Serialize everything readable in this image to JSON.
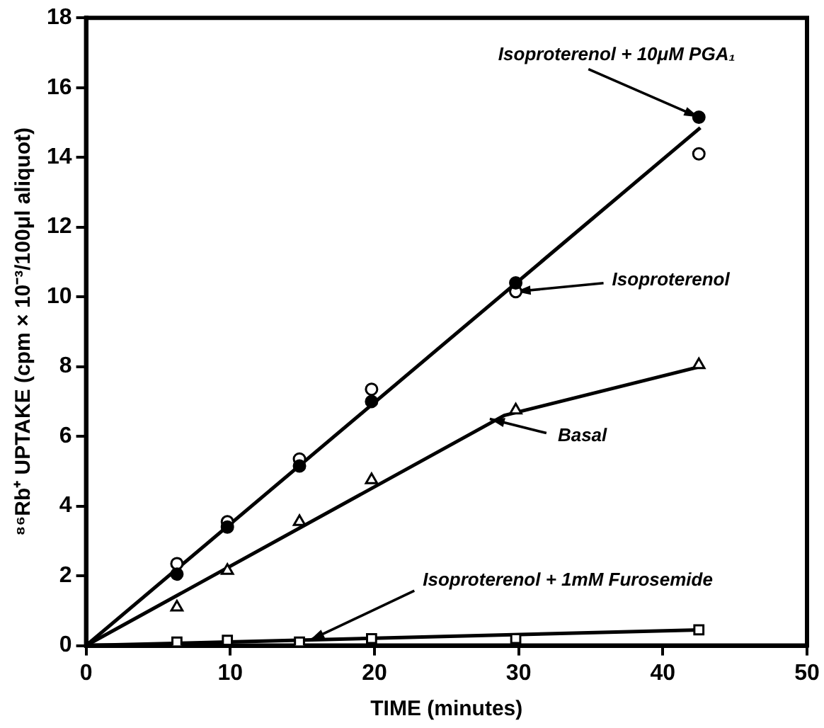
{
  "chart_data": {
    "type": "scatter",
    "xlabel": "TIME (minutes)",
    "ylabel": "⁸⁶Rb⁺ UPTAKE (cpm × 10⁻³/100μl aliquot)",
    "xlim": [
      0,
      50
    ],
    "xticks": [
      0,
      10,
      20,
      30,
      40,
      50
    ],
    "ylim": [
      0,
      18
    ],
    "yticks": [
      0,
      2,
      4,
      6,
      8,
      10,
      12,
      14,
      16,
      18
    ],
    "grid": false,
    "legend": false,
    "series": [
      {
        "marker": "circle",
        "color": "#ffffff",
        "x": [
          6.3,
          9.8,
          14.8,
          19.8,
          29.8,
          42.5
        ],
        "values": [
          2.35,
          3.55,
          5.35,
          7.35,
          10.15,
          14.1
        ]
      },
      {
        "marker": "circle",
        "color": "#000000",
        "x": [
          6.3,
          9.8,
          14.8,
          19.8,
          29.8,
          42.5
        ],
        "values": [
          2.05,
          3.4,
          5.15,
          7.0,
          10.4,
          15.15
        ]
      },
      {
        "marker": "triangle",
        "color": "#ffffff",
        "x": [
          6.3,
          9.8,
          14.8,
          19.8,
          29.8,
          42.5
        ],
        "values": [
          1.1,
          2.15,
          3.55,
          4.75,
          6.75,
          8.05
        ]
      },
      {
        "marker": "square",
        "color": "#ffffff",
        "x": [
          6.3,
          9.8,
          14.8,
          19.8,
          29.8,
          42.5
        ],
        "values": [
          0.1,
          0.15,
          0.1,
          0.2,
          0.2,
          0.45
        ]
      },
      {
        "type": "line",
        "marker": "none",
        "color": "#000000",
        "x": [
          0,
          42.6
        ],
        "values": [
          0,
          14.85
        ]
      },
      {
        "type": "line",
        "marker": "none",
        "color": "#000000",
        "x": [
          0,
          29,
          42.6
        ],
        "values": [
          0,
          6.6,
          8.0
        ]
      },
      {
        "type": "line",
        "marker": "none",
        "color": "#000000",
        "x": [
          0,
          42.5
        ],
        "values": [
          0,
          0.45
        ]
      }
    ],
    "annotations": [
      {
        "text": "Isoproterenol + 10μM PGA₁",
        "x": 42.5,
        "y": 15.15
      },
      {
        "text": "Isoproterenol",
        "x": 29.8,
        "y": 10.15
      },
      {
        "text": "Basal",
        "x": 28,
        "y": 6.5
      },
      {
        "text": "Isoproterenol + 1mM Furosemide",
        "x": 15.5,
        "y": 0.15
      }
    ]
  }
}
